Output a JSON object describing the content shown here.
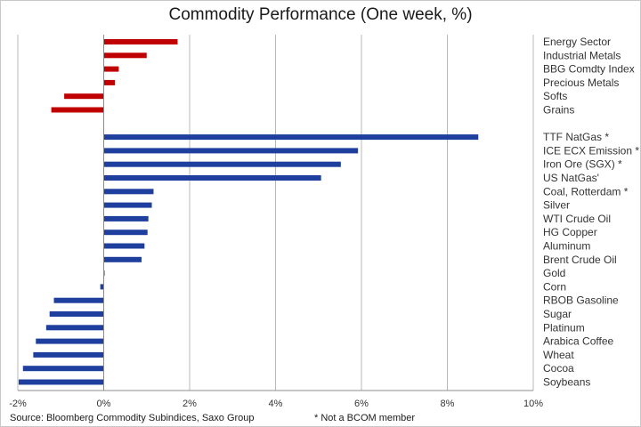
{
  "chart_data": {
    "type": "bar",
    "orientation": "horizontal",
    "title": "Commodity Performance (One week, %)",
    "xlabel": "",
    "ylabel": "",
    "xlim": [
      -2,
      10
    ],
    "x_ticks": [
      "-2%",
      "0%",
      "2%",
      "4%",
      "6%",
      "8%",
      "10%"
    ],
    "x_tick_values": [
      -2,
      0,
      2,
      4,
      6,
      8,
      10
    ],
    "grid": true,
    "grid_axis": "x",
    "legend": "none",
    "groups": [
      {
        "color": "#c00000",
        "categories": [
          "Energy Sector",
          "Industrial Metals",
          "BBG Comdty Index",
          "Precious Metals",
          "Softs",
          "Grains"
        ],
        "values": [
          1.72,
          1.0,
          0.35,
          0.26,
          -0.92,
          -1.22
        ]
      },
      {
        "color": "#1f3f9f",
        "categories": [
          "TTF NatGas *",
          "ICE ECX Emission *",
          "Iron Ore (SGX) *",
          "US NatGas'",
          "Coal, Rotterdam *",
          "Silver",
          "WTI Crude Oil",
          "HG Copper",
          "Aluminum",
          "Brent Crude Oil",
          "Gold",
          "Corn",
          "RBOB Gasoline",
          "Sugar",
          "Platinum",
          "Arabica Coffee",
          "Wheat",
          "Cocoa",
          "Soybeans"
        ],
        "values": [
          8.72,
          5.92,
          5.52,
          5.06,
          1.16,
          1.12,
          1.04,
          1.02,
          0.95,
          0.88,
          0.02,
          -0.08,
          -1.16,
          -1.26,
          -1.34,
          -1.58,
          -1.64,
          -1.88,
          -1.98
        ]
      }
    ],
    "source": "Source: Bloomberg Commodity Subindices, Saxo Group",
    "note": "* Not a BCOM member"
  },
  "colors": {
    "axis": "#8c8c8c",
    "gridline": "#b8b8b8"
  }
}
